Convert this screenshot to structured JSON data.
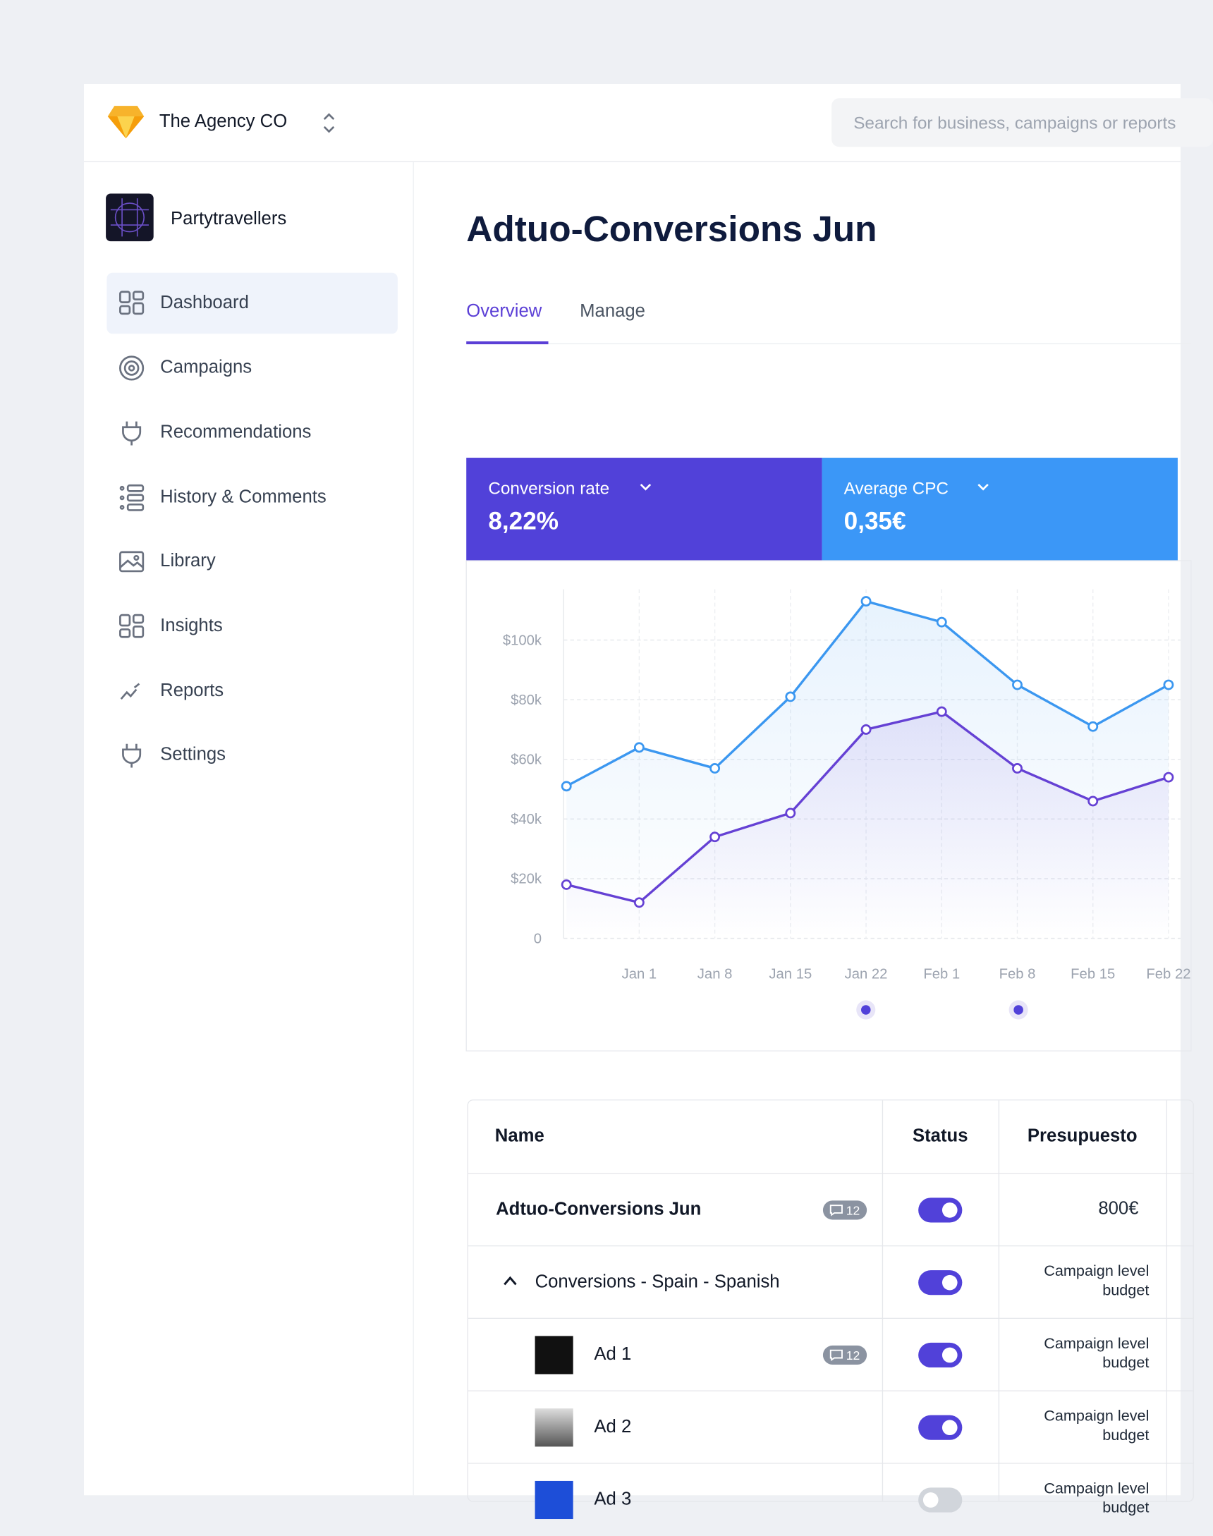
{
  "header": {
    "org": "The Agency CO",
    "search_placeholder": "Search for business, campaigns or reports"
  },
  "sidebar": {
    "account": "Partytravellers",
    "nav": [
      "Dashboard",
      "Campaigns",
      "Recommendations",
      "History & Comments",
      "Library",
      "Insights",
      "Reports",
      "Settings"
    ]
  },
  "main": {
    "title": "Adtuo-Conversions Jun",
    "tabs": [
      "Overview",
      "Manage"
    ],
    "metrics": [
      {
        "label": "Conversion rate",
        "value": "8,22%"
      },
      {
        "label": "Average CPC",
        "value": "0,35€"
      }
    ]
  },
  "chart_data": {
    "type": "line",
    "categories": [
      null,
      "Jan 1",
      "Jan 8",
      "Jan 15",
      "Jan 22",
      "Feb 1",
      "Feb 8",
      "Feb 15",
      "Feb 22"
    ],
    "series": [
      {
        "color": "#3b97f0",
        "values": [
          51,
          64,
          57,
          81,
          113,
          106,
          85,
          71,
          85
        ]
      },
      {
        "color": "#6541d4",
        "values": [
          18,
          12,
          34,
          42,
          70,
          76,
          57,
          46,
          54
        ]
      }
    ],
    "ylim": [
      0,
      117
    ],
    "yticks": [
      0,
      {
        "value": 20,
        "label": "$20k"
      },
      {
        "value": 40,
        "label": "$40k"
      },
      {
        "value": 60,
        "label": "$60k"
      },
      {
        "value": 80,
        "label": "$80k"
      },
      {
        "value": 100,
        "label": "$100k"
      }
    ],
    "grid": true
  },
  "table": {
    "headers": [
      "Name",
      "Status",
      "Presupuesto"
    ],
    "rows": [
      {
        "name": "Adtuo-Conversions Jun",
        "comments": "12",
        "active": true,
        "budget": "800€"
      },
      {
        "name": "Conversions - Spain - Spanish",
        "active": true,
        "budget": "Campaign level budget"
      },
      {
        "name": "Ad 1",
        "comments": "12",
        "active": true,
        "budget": "Campaign level budget"
      },
      {
        "name": "Ad 2",
        "active": true,
        "budget": "Campaign level budget"
      },
      {
        "name": "Ad 3",
        "active": false,
        "budget": "Campaign level budget"
      }
    ]
  }
}
